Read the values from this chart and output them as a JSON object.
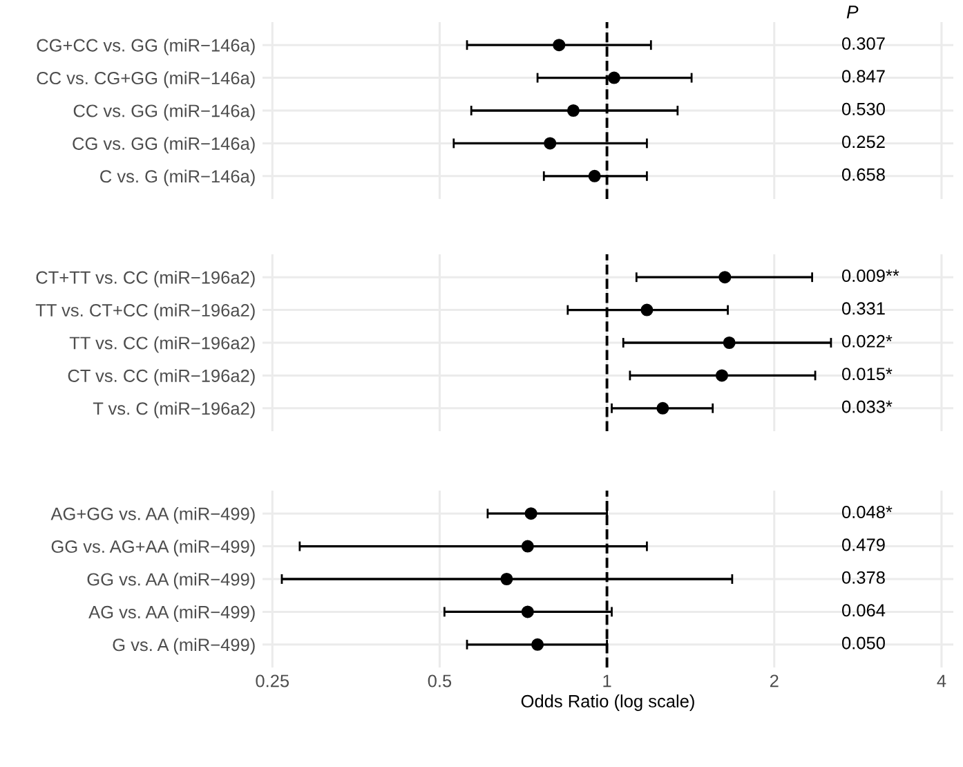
{
  "chart_data": [
    {
      "type": "scatter",
      "title": "P",
      "categories": [
        "CG+CC vs. GG (miR−146a)",
        "CC vs. CG+GG (miR−146a)",
        "CC vs. GG (miR−146a)",
        "CG vs. GG (miR−146a)",
        "C vs. G (miR−146a)"
      ],
      "values": [
        0.82,
        1.03,
        0.87,
        0.79,
        0.95
      ],
      "errors": [
        [
          0.56,
          1.2
        ],
        [
          0.75,
          1.42
        ],
        [
          0.57,
          1.34
        ],
        [
          0.53,
          1.18
        ],
        [
          0.77,
          1.18
        ]
      ],
      "annotations": [
        "0.307",
        "0.847",
        "0.530",
        "0.252",
        "0.658"
      ],
      "color": "#000000",
      "marker": "circle",
      "orientation": "horizontal",
      "log": "x",
      "xlim": [
        0.24,
        4.2
      ],
      "xticks": [
        0.25,
        0.5,
        1,
        2,
        4
      ],
      "grid": true,
      "tick_labels": "y",
      "ref_lines": [
        {
          "axis": "x",
          "value": 1,
          "line_style": "dashed",
          "color": "#000000"
        }
      ]
    },
    {
      "type": "scatter",
      "categories": [
        "CT+TT vs. CC (miR−196a2)",
        "TT vs. CT+CC (miR−196a2)",
        "TT vs. CC (miR−196a2)",
        "CT vs. CC (miR−196a2)",
        "T vs. C (miR−196a2)"
      ],
      "values": [
        1.63,
        1.18,
        1.66,
        1.61,
        1.26
      ],
      "errors": [
        [
          1.13,
          2.34
        ],
        [
          0.85,
          1.65
        ],
        [
          1.07,
          2.53
        ],
        [
          1.1,
          2.37
        ],
        [
          1.02,
          1.55
        ]
      ],
      "annotations": [
        "0.009**",
        "0.331",
        "0.022*",
        "0.015*",
        "0.033*"
      ],
      "color": "#000000",
      "marker": "circle",
      "orientation": "horizontal",
      "log": "x",
      "xlim": [
        0.24,
        4.2
      ],
      "xticks": [
        0.25,
        0.5,
        1,
        2,
        4
      ],
      "grid": true,
      "tick_labels": "y",
      "ref_lines": [
        {
          "axis": "x",
          "value": 1,
          "line_style": "dashed",
          "color": "#000000"
        }
      ]
    },
    {
      "type": "scatter",
      "xlabel": "Odds Ratio (log scale)",
      "categories": [
        "AG+GG vs. AA (miR−499)",
        "GG vs. AG+AA (miR−499)",
        "GG vs. AA (miR−499)",
        "AG vs. AA (miR−499)",
        "G vs. A (miR−499)"
      ],
      "values": [
        0.73,
        0.72,
        0.66,
        0.72,
        0.75
      ],
      "errors": [
        [
          0.61,
          1.0
        ],
        [
          0.28,
          1.18
        ],
        [
          0.26,
          1.68
        ],
        [
          0.51,
          1.02
        ],
        [
          0.56,
          1.0
        ]
      ],
      "annotations": [
        "0.048*",
        "0.479",
        "0.378",
        "0.064",
        "0.050"
      ],
      "color": "#000000",
      "marker": "circle",
      "orientation": "horizontal",
      "log": "x",
      "xlim": [
        0.24,
        4.2
      ],
      "xticks": [
        0.25,
        0.5,
        1,
        2,
        4
      ],
      "grid": true,
      "ref_lines": [
        {
          "axis": "x",
          "value": 1,
          "line_style": "dashed",
          "color": "#000000"
        }
      ]
    }
  ]
}
